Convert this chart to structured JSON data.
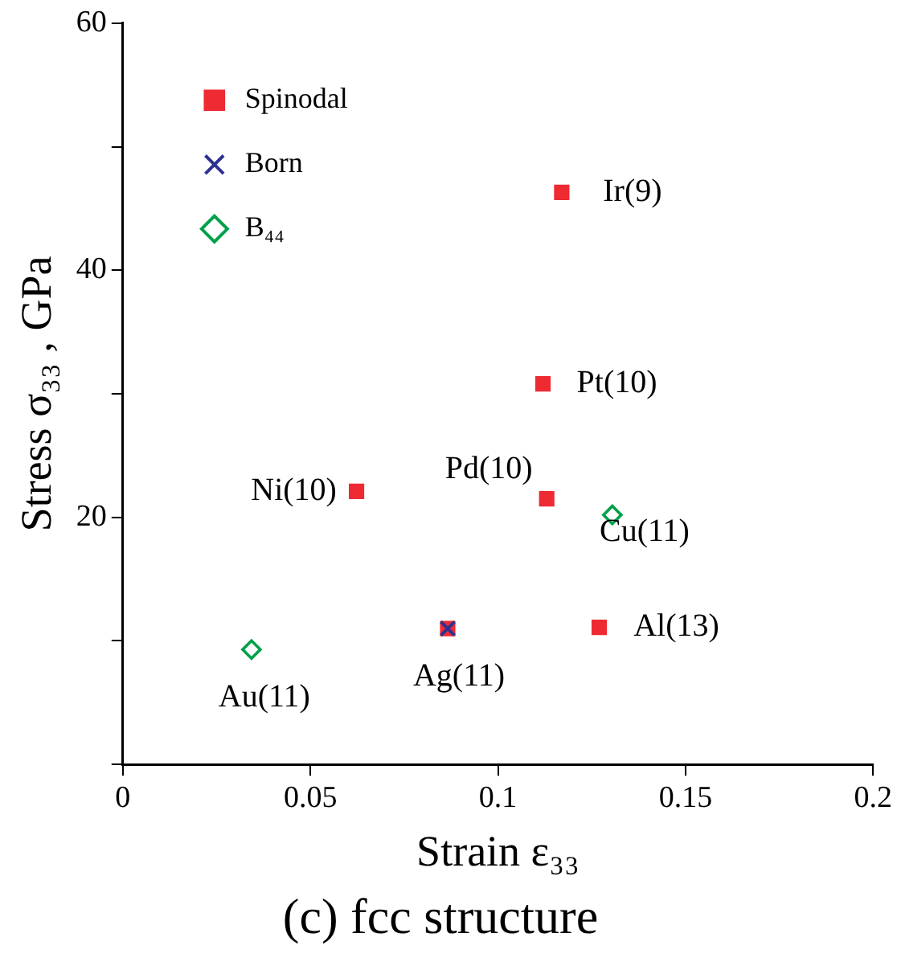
{
  "chart_data": {
    "type": "scatter",
    "title": "(c) fcc structure",
    "xlabel": "Strain ε₃₃",
    "ylabel": "Stress σ₃₃ , GPa",
    "xlim": [
      0,
      0.2
    ],
    "xticks": [
      0,
      0.05,
      0.1,
      0.15,
      0.2
    ],
    "ylim": [
      0,
      60
    ],
    "yticks": [
      {
        "value": 0,
        "label": null
      },
      {
        "value": 10,
        "label": null
      },
      20,
      {
        "value": 30,
        "label": null
      },
      40,
      {
        "value": 50,
        "label": null
      },
      60
    ],
    "grid": false,
    "legend": "top left",
    "series": [
      {
        "name": "Spinodal",
        "color": "#ee2a33",
        "marker": "square",
        "x": [
          0.0623,
          0.0866,
          0.112,
          0.113,
          0.117,
          0.127
        ],
        "values": [
          22.1,
          11.0,
          30.8,
          21.5,
          46.3,
          11.1
        ]
      },
      {
        "name": "Born",
        "color": "#2e3192",
        "marker": "cross",
        "x": [
          0.0866
        ],
        "values": [
          11.0
        ]
      },
      {
        "name": "B₄₄",
        "color": "#00a04a",
        "marker": "diamond",
        "x": [
          0.0343,
          0.1305
        ],
        "values": [
          9.3,
          20.2
        ]
      }
    ],
    "annotations": [
      {
        "text": "Ir(9)",
        "x": 0.117,
        "y": 46.3
      },
      {
        "text": "Pt(10)",
        "x": 0.112,
        "y": 30.8
      },
      {
        "text": "Ni(10)",
        "x": 0.0623,
        "y": 22.1
      },
      {
        "text": "Pd(10)",
        "x": 0.113,
        "y": 21.5
      },
      {
        "text": "Cu(11)",
        "x": 0.1305,
        "y": 20.2
      },
      {
        "text": "Al(13)",
        "x": 0.127,
        "y": 11.1
      },
      {
        "text": "Au(11)",
        "x": 0.0343,
        "y": 9.3
      },
      {
        "text": "Ag(11)",
        "x": 0.0866,
        "y": 11.0
      }
    ]
  }
}
